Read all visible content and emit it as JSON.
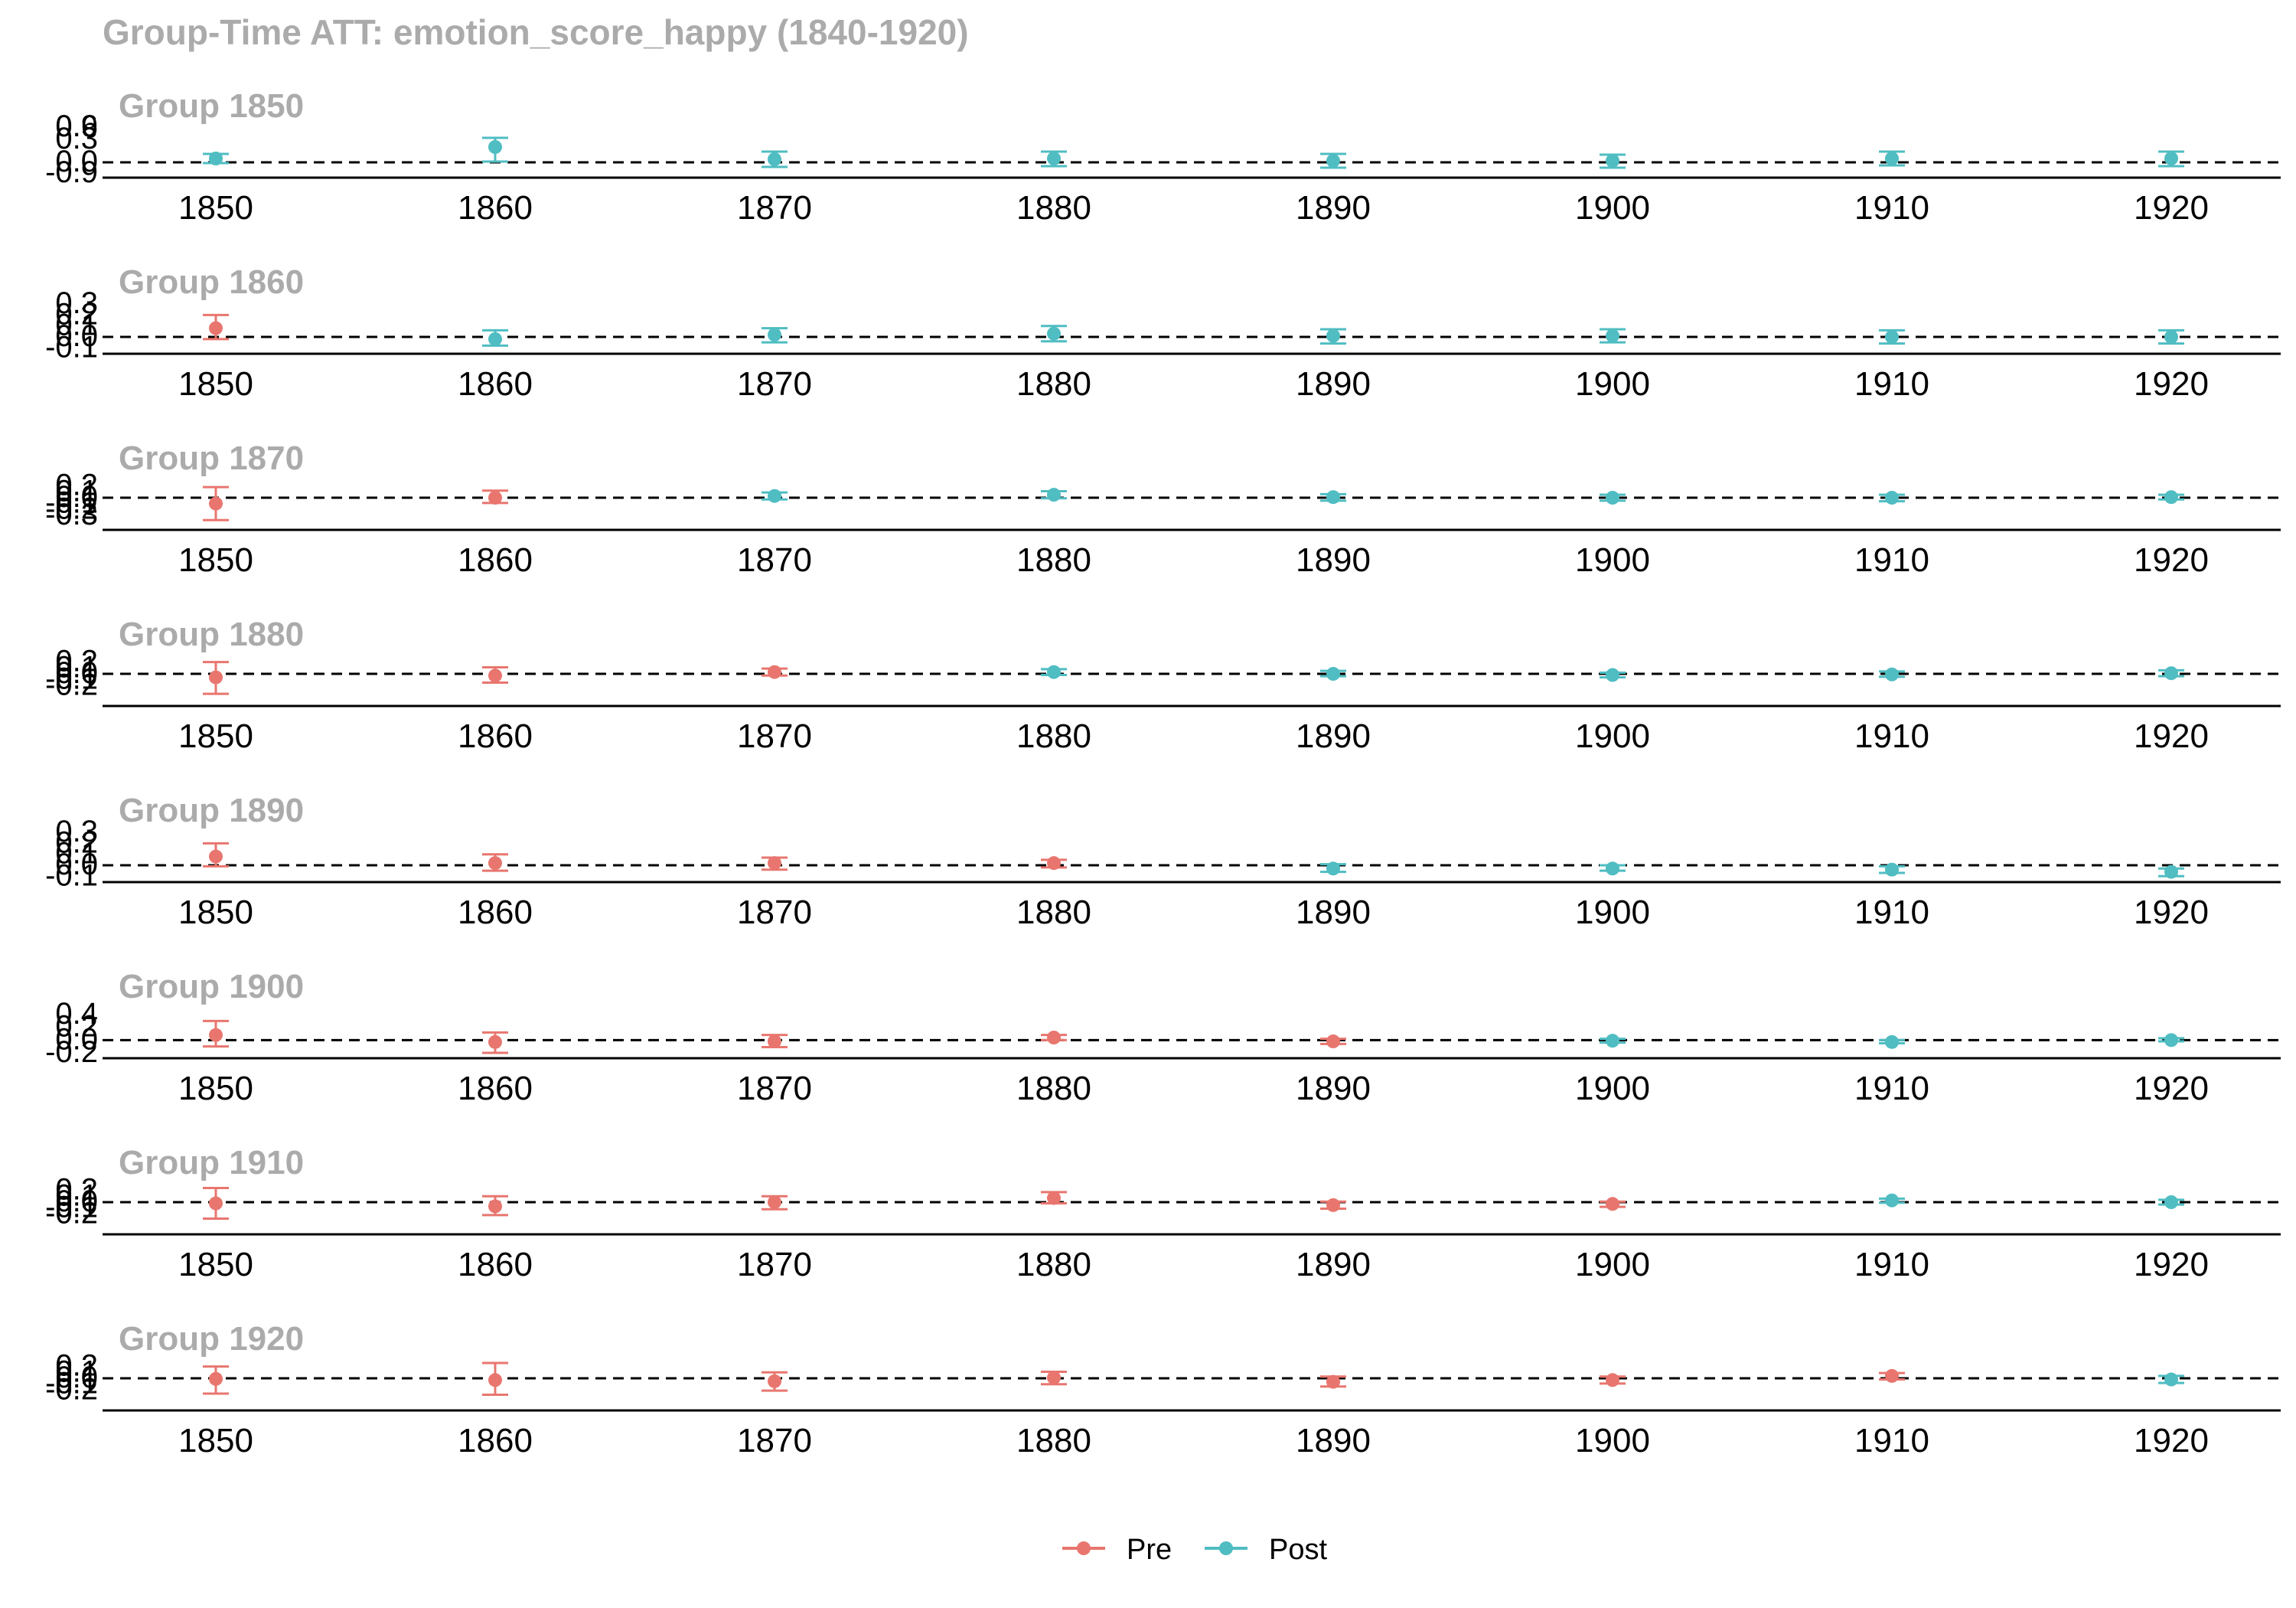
{
  "title": "Group-Time ATT: emotion_score_happy (1840-1920)",
  "legend": [
    {
      "label": "Pre",
      "color": "#E8766F"
    },
    {
      "label": "Post",
      "color": "#4FBDC2"
    }
  ],
  "chart_data": {
    "type": "scatter",
    "subtype": "errorbar",
    "title": "Group-Time ATT: emotion_score_happy (1840-1920)",
    "xlabel": "",
    "ylabel": "",
    "x_ticks": [
      1850,
      1860,
      1870,
      1880,
      1890,
      1900,
      1910,
      1920
    ],
    "reference_line": 0,
    "grid": false,
    "legend_position": "bottom",
    "panels": [
      {
        "label": "Group 1850",
        "yticks": [
          "-0.9",
          "0.0",
          "0.3",
          "0.6",
          "0.9"
        ],
        "ylim": [
          -0.18,
          0.42
        ],
        "points": [
          {
            "x": 1850,
            "y": 0.05,
            "lo": -0.01,
            "hi": 0.11,
            "period": "Post"
          },
          {
            "x": 1860,
            "y": 0.2,
            "lo": 0.01,
            "hi": 0.32,
            "period": "Post"
          },
          {
            "x": 1870,
            "y": 0.04,
            "lo": -0.06,
            "hi": 0.14,
            "period": "Post"
          },
          {
            "x": 1880,
            "y": 0.05,
            "lo": -0.05,
            "hi": 0.14,
            "period": "Post"
          },
          {
            "x": 1890,
            "y": 0.02,
            "lo": -0.07,
            "hi": 0.11,
            "period": "Post"
          },
          {
            "x": 1900,
            "y": 0.02,
            "lo": -0.07,
            "hi": 0.1,
            "period": "Post"
          },
          {
            "x": 1910,
            "y": 0.05,
            "lo": -0.04,
            "hi": 0.14,
            "period": "Post"
          },
          {
            "x": 1920,
            "y": 0.05,
            "lo": -0.05,
            "hi": 0.14,
            "period": "Post"
          }
        ]
      },
      {
        "label": "Group 1860",
        "yticks": [
          "-0.1",
          "0.0",
          "0.1",
          "0.2",
          "0.3"
        ],
        "ylim": [
          -0.14,
          0.28
        ],
        "points": [
          {
            "x": 1850,
            "y": 0.08,
            "lo": -0.02,
            "hi": 0.2,
            "period": "Pre"
          },
          {
            "x": 1860,
            "y": -0.02,
            "lo": -0.08,
            "hi": 0.06,
            "period": "Post"
          },
          {
            "x": 1870,
            "y": 0.02,
            "lo": -0.05,
            "hi": 0.08,
            "period": "Post"
          },
          {
            "x": 1880,
            "y": 0.03,
            "lo": -0.04,
            "hi": 0.1,
            "period": "Post"
          },
          {
            "x": 1890,
            "y": 0.01,
            "lo": -0.06,
            "hi": 0.07,
            "period": "Post"
          },
          {
            "x": 1900,
            "y": 0.01,
            "lo": -0.05,
            "hi": 0.07,
            "period": "Post"
          },
          {
            "x": 1910,
            "y": 0.0,
            "lo": -0.06,
            "hi": 0.06,
            "period": "Post"
          },
          {
            "x": 1920,
            "y": 0.0,
            "lo": -0.06,
            "hi": 0.06,
            "period": "Post"
          }
        ]
      },
      {
        "label": "Group 1870",
        "yticks": [
          "-0.3",
          "-0.2",
          "-0.1",
          "0.0",
          "0.1",
          "0.2"
        ],
        "ylim": [
          -0.52,
          0.26
        ],
        "points": [
          {
            "x": 1850,
            "y": -0.1,
            "lo": -0.38,
            "hi": 0.18,
            "period": "Pre"
          },
          {
            "x": 1860,
            "y": 0.0,
            "lo": -0.09,
            "hi": 0.12,
            "period": "Pre"
          },
          {
            "x": 1870,
            "y": 0.03,
            "lo": -0.03,
            "hi": 0.09,
            "period": "Post"
          },
          {
            "x": 1880,
            "y": 0.05,
            "lo": -0.01,
            "hi": 0.11,
            "period": "Post"
          },
          {
            "x": 1890,
            "y": 0.01,
            "lo": -0.05,
            "hi": 0.06,
            "period": "Post"
          },
          {
            "x": 1900,
            "y": 0.0,
            "lo": -0.05,
            "hi": 0.05,
            "period": "Post"
          },
          {
            "x": 1910,
            "y": 0.0,
            "lo": -0.06,
            "hi": 0.05,
            "period": "Post"
          },
          {
            "x": 1920,
            "y": 0.01,
            "lo": -0.03,
            "hi": 0.05,
            "period": "Post"
          }
        ]
      },
      {
        "label": "Group 1880",
        "yticks": [
          "-0.2",
          "-0.1",
          "0.0",
          "0.1",
          "0.2"
        ],
        "ylim": [
          -0.52,
          0.26
        ],
        "points": [
          {
            "x": 1850,
            "y": -0.06,
            "lo": -0.34,
            "hi": 0.2,
            "period": "Pre"
          },
          {
            "x": 1860,
            "y": -0.03,
            "lo": -0.15,
            "hi": 0.11,
            "period": "Pre"
          },
          {
            "x": 1870,
            "y": 0.03,
            "lo": -0.03,
            "hi": 0.09,
            "period": "Pre"
          },
          {
            "x": 1880,
            "y": 0.03,
            "lo": -0.02,
            "hi": 0.08,
            "period": "Post"
          },
          {
            "x": 1890,
            "y": 0.0,
            "lo": -0.04,
            "hi": 0.05,
            "period": "Post"
          },
          {
            "x": 1900,
            "y": -0.02,
            "lo": -0.06,
            "hi": 0.02,
            "period": "Post"
          },
          {
            "x": 1910,
            "y": -0.01,
            "lo": -0.05,
            "hi": 0.04,
            "period": "Post"
          },
          {
            "x": 1920,
            "y": 0.01,
            "lo": -0.04,
            "hi": 0.06,
            "period": "Post"
          }
        ]
      },
      {
        "label": "Group 1890",
        "yticks": [
          "-0.1",
          "0.0",
          "0.1",
          "0.2",
          "0.3"
        ],
        "ylim": [
          -0.14,
          0.28
        ],
        "points": [
          {
            "x": 1850,
            "y": 0.08,
            "lo": -0.01,
            "hi": 0.2,
            "period": "Pre"
          },
          {
            "x": 1860,
            "y": 0.02,
            "lo": -0.05,
            "hi": 0.1,
            "period": "Pre"
          },
          {
            "x": 1870,
            "y": 0.02,
            "lo": -0.04,
            "hi": 0.07,
            "period": "Pre"
          },
          {
            "x": 1880,
            "y": 0.02,
            "lo": -0.02,
            "hi": 0.05,
            "period": "Pre"
          },
          {
            "x": 1890,
            "y": -0.03,
            "lo": -0.06,
            "hi": 0.01,
            "period": "Post"
          },
          {
            "x": 1900,
            "y": -0.03,
            "lo": -0.05,
            "hi": 0.0,
            "period": "Post"
          },
          {
            "x": 1910,
            "y": -0.04,
            "lo": -0.07,
            "hi": -0.01,
            "period": "Post"
          },
          {
            "x": 1920,
            "y": -0.06,
            "lo": -0.1,
            "hi": -0.03,
            "period": "Post"
          }
        ]
      },
      {
        "label": "Group 1900",
        "yticks": [
          "-0.2",
          "0.0",
          "0.2",
          "0.4"
        ],
        "ylim": [
          -0.26,
          0.46
        ],
        "points": [
          {
            "x": 1850,
            "y": 0.08,
            "lo": -0.1,
            "hi": 0.3,
            "period": "Pre"
          },
          {
            "x": 1860,
            "y": -0.03,
            "lo": -0.2,
            "hi": 0.12,
            "period": "Pre"
          },
          {
            "x": 1870,
            "y": -0.02,
            "lo": -0.11,
            "hi": 0.08,
            "period": "Pre"
          },
          {
            "x": 1880,
            "y": 0.04,
            "lo": 0.0,
            "hi": 0.08,
            "period": "Pre"
          },
          {
            "x": 1890,
            "y": -0.02,
            "lo": -0.06,
            "hi": 0.02,
            "period": "Pre"
          },
          {
            "x": 1900,
            "y": -0.01,
            "lo": -0.04,
            "hi": 0.02,
            "period": "Post"
          },
          {
            "x": 1910,
            "y": -0.03,
            "lo": -0.05,
            "hi": 0.0,
            "period": "Post"
          },
          {
            "x": 1920,
            "y": 0.0,
            "lo": -0.02,
            "hi": 0.03,
            "period": "Post"
          }
        ]
      },
      {
        "label": "Group 1910",
        "yticks": [
          "-0.2",
          "-0.1",
          "0.0",
          "0.1",
          "0.2"
        ],
        "ylim": [
          -0.52,
          0.26
        ],
        "points": [
          {
            "x": 1850,
            "y": -0.02,
            "lo": -0.28,
            "hi": 0.24,
            "period": "Pre"
          },
          {
            "x": 1860,
            "y": -0.07,
            "lo": -0.22,
            "hi": 0.1,
            "period": "Pre"
          },
          {
            "x": 1870,
            "y": 0.0,
            "lo": -0.12,
            "hi": 0.1,
            "period": "Pre"
          },
          {
            "x": 1880,
            "y": 0.07,
            "lo": -0.02,
            "hi": 0.17,
            "period": "Pre"
          },
          {
            "x": 1890,
            "y": -0.05,
            "lo": -0.11,
            "hi": 0.01,
            "period": "Pre"
          },
          {
            "x": 1900,
            "y": -0.03,
            "lo": -0.08,
            "hi": 0.01,
            "period": "Pre"
          },
          {
            "x": 1910,
            "y": 0.03,
            "lo": -0.01,
            "hi": 0.06,
            "period": "Post"
          },
          {
            "x": 1920,
            "y": 0.0,
            "lo": -0.04,
            "hi": 0.04,
            "period": "Post"
          }
        ]
      },
      {
        "label": "Group 1920",
        "yticks": [
          "-0.2",
          "-0.1",
          "0.0",
          "0.1",
          "0.2"
        ],
        "ylim": [
          -0.52,
          0.26
        ],
        "points": [
          {
            "x": 1850,
            "y": -0.01,
            "lo": -0.26,
            "hi": 0.2,
            "period": "Pre"
          },
          {
            "x": 1860,
            "y": -0.03,
            "lo": -0.28,
            "hi": 0.26,
            "period": "Pre"
          },
          {
            "x": 1870,
            "y": -0.05,
            "lo": -0.21,
            "hi": 0.1,
            "period": "Pre"
          },
          {
            "x": 1880,
            "y": 0.01,
            "lo": -0.1,
            "hi": 0.11,
            "period": "Pre"
          },
          {
            "x": 1890,
            "y": -0.06,
            "lo": -0.14,
            "hi": 0.03,
            "period": "Pre"
          },
          {
            "x": 1900,
            "y": -0.03,
            "lo": -0.09,
            "hi": 0.03,
            "period": "Pre"
          },
          {
            "x": 1910,
            "y": 0.04,
            "lo": -0.02,
            "hi": 0.09,
            "period": "Pre"
          },
          {
            "x": 1920,
            "y": -0.02,
            "lo": -0.08,
            "hi": 0.04,
            "period": "Post"
          }
        ]
      }
    ]
  }
}
